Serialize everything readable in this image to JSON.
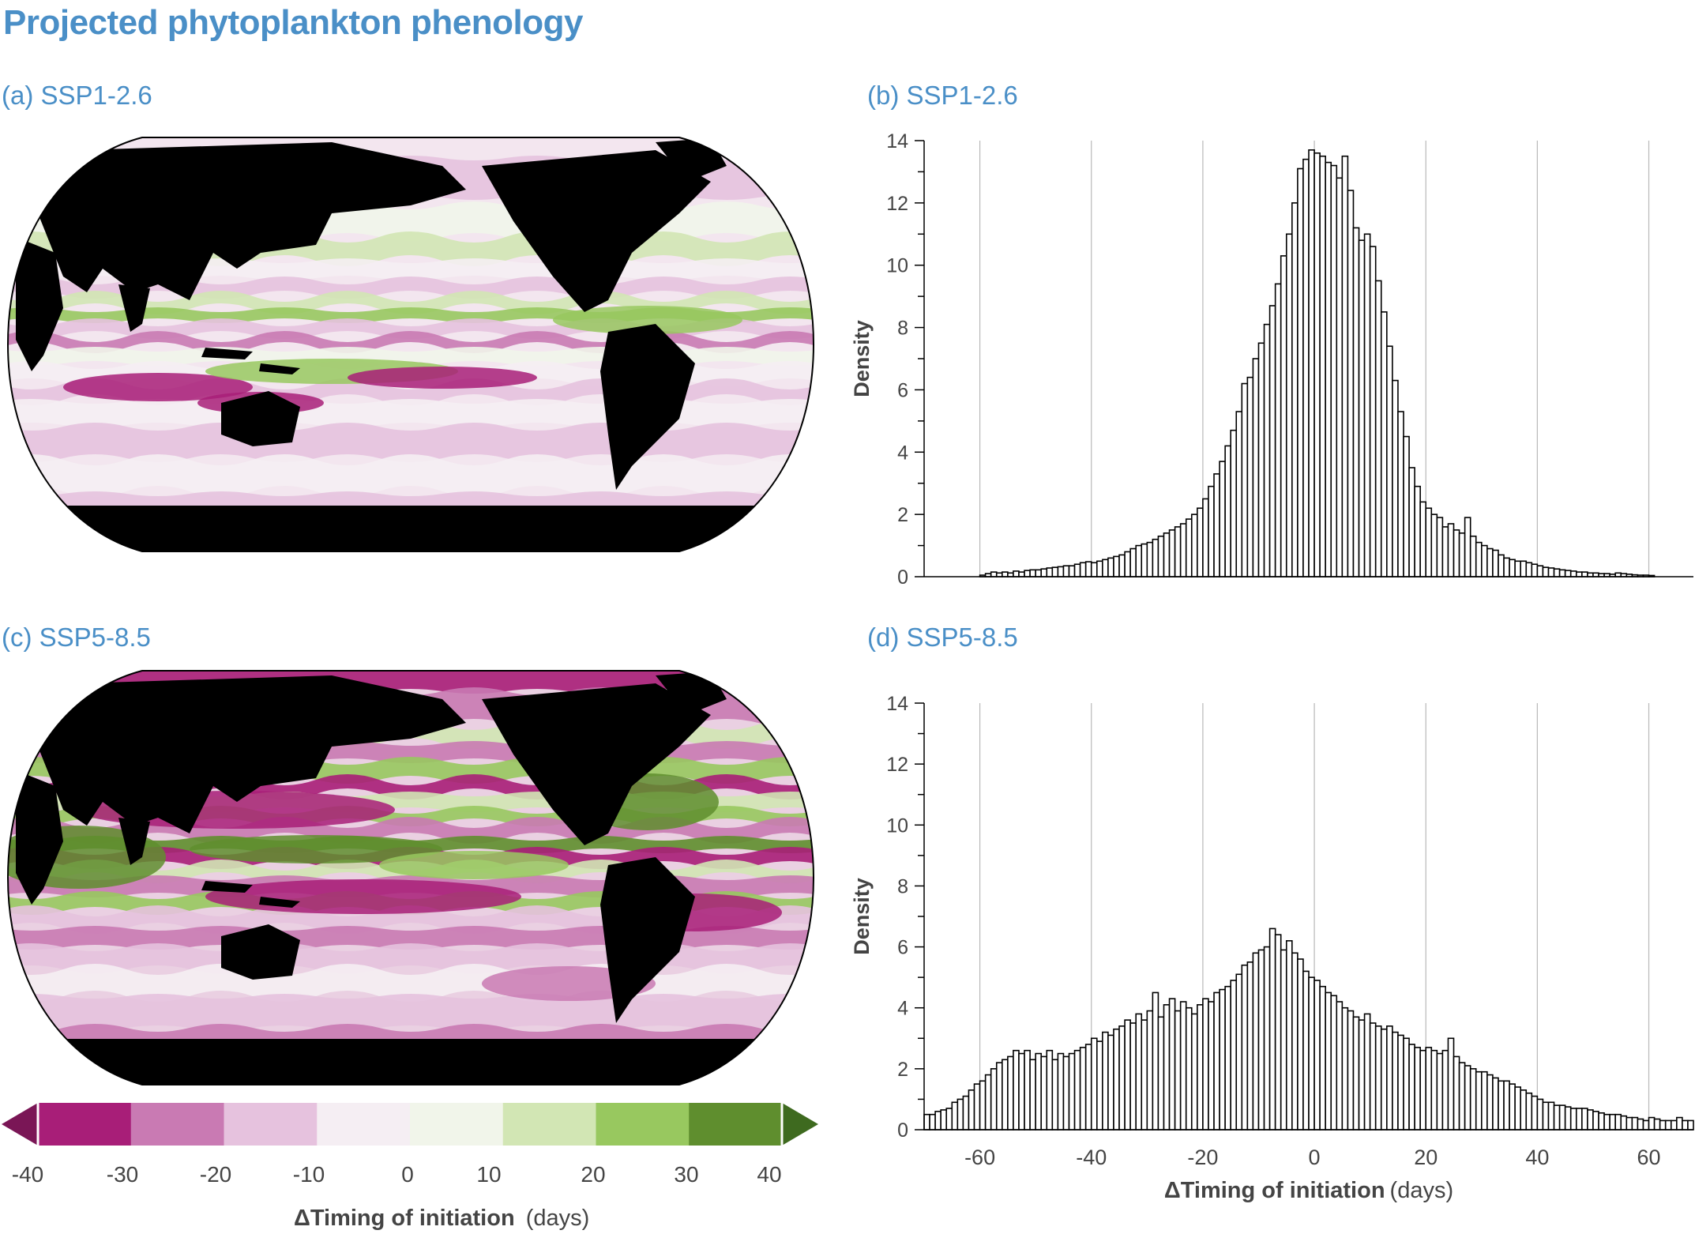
{
  "title": "Projected phytoplankton phenology",
  "panels": {
    "a": "(a) SSP1-2.6",
    "b": "(b) SSP1-2.6",
    "c": "(c) SSP5-8.5",
    "d": "(d) SSP5-8.5"
  },
  "colors": {
    "title": "#4a8fc7",
    "land": "#000000",
    "scale": [
      "#7a1656",
      "#a81e78",
      "#c97ab3",
      "#e6c2de",
      "#f5eef3",
      "#f1f5ea",
      "#d2e6b4",
      "#98c85f",
      "#5f8e2e",
      "#3e6a1f"
    ]
  },
  "colorbar": {
    "ticks": [
      "-40",
      "-30",
      "-20",
      "-10",
      "0",
      "10",
      "20",
      "30",
      "40"
    ],
    "label_bold": "ΔTiming of initiation",
    "label_unit": "(days)"
  },
  "chart_data": [
    {
      "type": "bar",
      "panel": "b",
      "ylabel": "Density",
      "xlabel": "",
      "xlim": [
        -70,
        68
      ],
      "ylim": [
        0,
        14
      ],
      "xticks": [
        -60,
        -40,
        -20,
        0,
        20,
        40,
        60
      ],
      "yticks": [
        0,
        2,
        4,
        6,
        8,
        10,
        12,
        14
      ],
      "bin_width": 1,
      "x_start": -60,
      "values": [
        0.05,
        0.1,
        0.15,
        0.12,
        0.15,
        0.12,
        0.18,
        0.15,
        0.2,
        0.22,
        0.22,
        0.25,
        0.28,
        0.3,
        0.32,
        0.35,
        0.35,
        0.4,
        0.45,
        0.48,
        0.45,
        0.5,
        0.55,
        0.6,
        0.65,
        0.7,
        0.8,
        0.9,
        1.0,
        1.05,
        1.1,
        1.2,
        1.3,
        1.4,
        1.5,
        1.6,
        1.7,
        1.85,
        2.0,
        2.2,
        2.5,
        2.9,
        3.3,
        3.7,
        4.2,
        4.7,
        5.3,
        6.2,
        6.4,
        7.0,
        7.5,
        8.1,
        8.7,
        9.4,
        10.3,
        11.0,
        12.0,
        13.1,
        13.4,
        13.7,
        13.6,
        13.5,
        13.3,
        13.2,
        12.8,
        13.5,
        12.4,
        11.2,
        10.8,
        11.0,
        10.6,
        9.5,
        8.5,
        7.4,
        6.3,
        5.3,
        4.5,
        3.5,
        2.9,
        2.4,
        2.2,
        2.0,
        1.9,
        1.6,
        1.7,
        1.5,
        1.4,
        1.9,
        1.3,
        1.1,
        1.0,
        0.9,
        0.85,
        0.7,
        0.6,
        0.55,
        0.5,
        0.5,
        0.45,
        0.4,
        0.35,
        0.3,
        0.28,
        0.25,
        0.22,
        0.2,
        0.18,
        0.15,
        0.15,
        0.12,
        0.12,
        0.1,
        0.1,
        0.08,
        0.12,
        0.1,
        0.08,
        0.06,
        0.05,
        0.05,
        0.04
      ]
    },
    {
      "type": "bar",
      "panel": "d",
      "ylabel": "Density",
      "xlabel": "ΔTiming of initiation",
      "xlabel_unit": "(days)",
      "xlim": [
        -70,
        68
      ],
      "ylim": [
        0,
        14
      ],
      "xticks": [
        -60,
        -40,
        -20,
        0,
        20,
        40,
        60
      ],
      "yticks": [
        0,
        2,
        4,
        6,
        8,
        10,
        12,
        14
      ],
      "bin_width": 1,
      "x_start": -70,
      "values": [
        0.5,
        0.5,
        0.6,
        0.65,
        0.7,
        0.9,
        1.0,
        1.1,
        1.3,
        1.5,
        1.6,
        1.8,
        2.0,
        2.2,
        2.3,
        2.4,
        2.6,
        2.5,
        2.6,
        2.3,
        2.5,
        2.4,
        2.6,
        2.3,
        2.5,
        2.4,
        2.5,
        2.6,
        2.7,
        2.8,
        3.0,
        2.9,
        3.2,
        3.1,
        3.3,
        3.4,
        3.6,
        3.5,
        3.8,
        3.6,
        3.9,
        4.5,
        3.7,
        4.1,
        4.3,
        3.9,
        4.2,
        4.0,
        3.8,
        4.1,
        4.3,
        4.2,
        4.5,
        4.6,
        4.7,
        4.9,
        5.1,
        5.4,
        5.5,
        5.8,
        5.9,
        6.0,
        6.6,
        6.4,
        5.9,
        6.2,
        5.8,
        5.6,
        5.2,
        5.0,
        4.9,
        4.7,
        4.5,
        4.4,
        4.2,
        4.0,
        3.9,
        3.7,
        3.6,
        3.8,
        3.5,
        3.4,
        3.3,
        3.4,
        3.2,
        3.1,
        3.0,
        2.8,
        2.7,
        2.6,
        2.7,
        2.6,
        2.5,
        2.6,
        3.0,
        2.4,
        2.2,
        2.1,
        2.0,
        1.9,
        1.9,
        1.8,
        1.7,
        1.6,
        1.6,
        1.5,
        1.4,
        1.3,
        1.2,
        1.1,
        1.0,
        0.9,
        0.9,
        0.8,
        0.8,
        0.75,
        0.7,
        0.7,
        0.7,
        0.65,
        0.6,
        0.55,
        0.5,
        0.5,
        0.5,
        0.45,
        0.4,
        0.4,
        0.35,
        0.3,
        0.4,
        0.35,
        0.3,
        0.3,
        0.3,
        0.4,
        0.3,
        0.3
      ]
    }
  ]
}
